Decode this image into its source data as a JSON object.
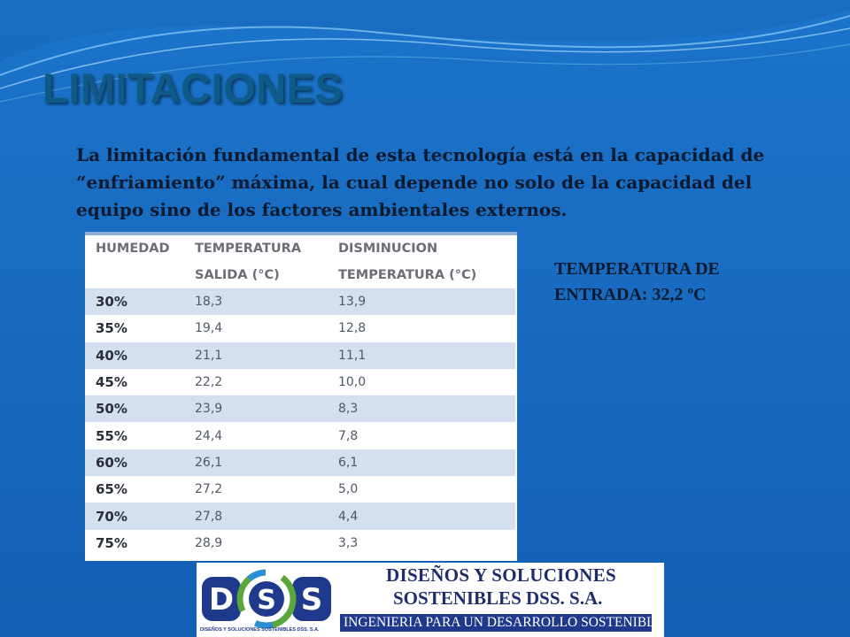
{
  "slide": {
    "title": "LIMITACIONES",
    "body_lines": [
      "La limitación fundamental de esta tecnología está en la capacidad de",
      "“enfriamiento” máxima, la cual depende no solo de la capacidad del",
      "equipo sino de los factores ambientales externos."
    ],
    "side_note_lines": [
      "TEMPERATURA DE",
      "ENTRADA: 32,2 ºC"
    ]
  },
  "table": {
    "headers": [
      [
        "HUMEDAD"
      ],
      [
        "TEMPERATURA",
        "SALIDA (°C)"
      ],
      [
        "DISMINUCION",
        "TEMPERATURA (°C)"
      ]
    ],
    "rows": [
      [
        "30%",
        "18,3",
        "13,9"
      ],
      [
        "35%",
        "19,4",
        "12,8"
      ],
      [
        "40%",
        "21,1",
        "11,1"
      ],
      [
        "45%",
        "22,2",
        "10,0"
      ],
      [
        "50%",
        "23,9",
        "8,3"
      ],
      [
        "55%",
        "24,4",
        "7,8"
      ],
      [
        "60%",
        "26,1",
        "6,1"
      ],
      [
        "65%",
        "27,2",
        "5,0"
      ],
      [
        "70%",
        "27,8",
        "4,4"
      ],
      [
        "75%",
        "28,9",
        "3,3"
      ]
    ]
  },
  "logo": {
    "letters": [
      "D",
      "S",
      "S"
    ],
    "small_text": "DISEÑOS Y SOLUCIONES SOSTENIBLES DSS. S.A.",
    "name_line1": "DISEÑOS Y SOLUCIONES",
    "name_line2": "SOSTENIBLES DSS. S.A.",
    "tagline": "INGENIERIA PARA UN DESARROLLO SOSTENIBLE",
    "colors": {
      "navy": "#1f3a8c",
      "green": "#5aa63c",
      "blue": "#2b8fd6"
    }
  },
  "colors": {
    "background": "#1a73c9",
    "title": "#0f5a86",
    "row_alt": "#d4dff0"
  }
}
